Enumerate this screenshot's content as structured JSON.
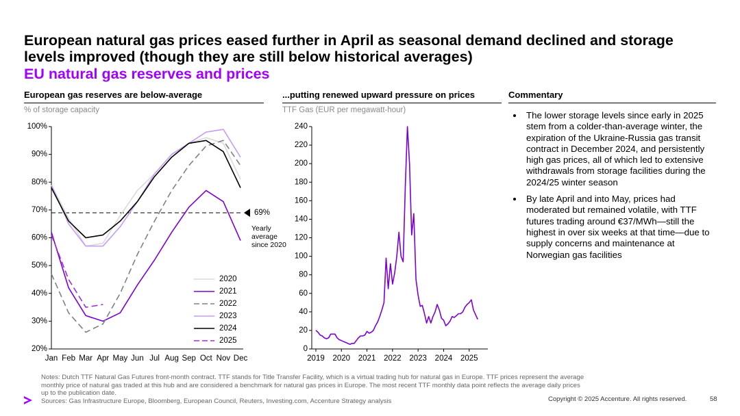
{
  "title": "European natural gas prices eased further in April as seasonal demand declined and storage levels improved (though they are still below historical averages)",
  "subtitle": "EU natural gas reserves and prices",
  "chart_data": [
    {
      "type": "line",
      "title": "European gas reserves are below-average",
      "y_label": "% of storage capacity",
      "categories": [
        "Jan",
        "Feb",
        "Mar",
        "Apr",
        "May",
        "Jun",
        "Jul",
        "Aug",
        "Sep",
        "Oct",
        "Nov",
        "Dec"
      ],
      "ylim": [
        20,
        100
      ],
      "yticks": [
        {
          "value": 20,
          "label": "20%"
        },
        {
          "value": 30,
          "label": "30%"
        },
        {
          "value": 40,
          "label": "40%"
        },
        {
          "value": 50,
          "label": "50%"
        },
        {
          "value": 60,
          "label": "60%"
        },
        {
          "value": 70,
          "label": "70%"
        },
        {
          "value": 80,
          "label": "80%"
        },
        {
          "value": 90,
          "label": "90%"
        },
        {
          "value": 100,
          "label": "100%"
        }
      ],
      "legend": "lower right",
      "series": [
        {
          "name": "2020",
          "color": "#d9d9d9",
          "style": "solid",
          "values": [
            79,
            67,
            57,
            58,
            68,
            77,
            83,
            90,
            94,
            96,
            94,
            81
          ]
        },
        {
          "name": "2021",
          "color": "#7b00d4",
          "style": "solid",
          "values": [
            62,
            42,
            32,
            30,
            33,
            43,
            52,
            62,
            71,
            77,
            73,
            59
          ]
        },
        {
          "name": "2022",
          "color": "#808080",
          "style": "dashed",
          "values": [
            47,
            33,
            26,
            29,
            40,
            54,
            66,
            77,
            86,
            93,
            95,
            86
          ]
        },
        {
          "name": "2023",
          "color": "#c89cf5",
          "style": "solid",
          "values": [
            79,
            65,
            57,
            57,
            64,
            73,
            83,
            90,
            94,
            98,
            99,
            89
          ]
        },
        {
          "name": "2024",
          "color": "#000000",
          "style": "solid",
          "values": [
            78,
            66,
            60,
            61,
            66,
            73,
            82,
            89,
            94,
            95,
            91,
            78
          ]
        },
        {
          "name": "2025",
          "color": "#9b30d9",
          "style": "dashed",
          "values": [
            61,
            45,
            35,
            36,
            null,
            null,
            null,
            null,
            null,
            null,
            null,
            null
          ]
        }
      ],
      "reference_line": {
        "value": 69,
        "label": "69%",
        "text": "Yearly average since 2020"
      }
    },
    {
      "type": "line",
      "title": "...putting renewed upward pressure on prices",
      "y_label": "TTF Gas (EUR per megawatt-hour)",
      "xlim": [
        2018.84,
        2025.73
      ],
      "xticks": [
        2019,
        2020,
        2021,
        2022,
        2023,
        2024,
        2025
      ],
      "ylim": [
        0,
        240
      ],
      "yticks": [
        0,
        20,
        40,
        60,
        80,
        100,
        120,
        140,
        160,
        180,
        200,
        220,
        240
      ],
      "series": [
        {
          "name": "TTF",
          "color": "#7b00d4",
          "x": [
            2019,
            2019.083,
            2019.167,
            2019.25,
            2019.333,
            2019.417,
            2019.5,
            2019.583,
            2019.667,
            2019.75,
            2019.833,
            2019.917,
            2020,
            2020.083,
            2020.167,
            2020.25,
            2020.333,
            2020.417,
            2020.5,
            2020.583,
            2020.667,
            2020.75,
            2020.833,
            2020.917,
            2021,
            2021.083,
            2021.167,
            2021.25,
            2021.333,
            2021.417,
            2021.5,
            2021.583,
            2021.667,
            2021.75,
            2021.833,
            2021.917,
            2022,
            2022.083,
            2022.167,
            2022.25,
            2022.333,
            2022.417,
            2022.5,
            2022.583,
            2022.667,
            2022.75,
            2022.833,
            2022.917,
            2023,
            2023.083,
            2023.167,
            2023.25,
            2023.333,
            2023.417,
            2023.5,
            2023.583,
            2023.667,
            2023.75,
            2023.833,
            2023.917,
            2024,
            2024.083,
            2024.167,
            2024.25,
            2024.333,
            2024.417,
            2024.5,
            2024.583,
            2024.667,
            2024.75,
            2024.833,
            2024.917,
            2025,
            2025.083,
            2025.167,
            2025.25,
            2025.333
          ],
          "values": [
            20,
            18,
            15,
            14,
            12,
            11,
            12,
            16,
            16,
            16,
            12,
            10,
            9,
            8,
            7,
            6,
            5,
            6,
            6,
            9,
            12,
            14,
            14,
            15,
            19,
            17,
            18,
            20,
            25,
            29,
            35,
            42,
            50,
            98,
            65,
            92,
            70,
            82,
            100,
            126,
            100,
            94,
            175,
            240,
            200,
            123,
            146,
            75,
            58,
            46,
            47,
            38,
            28,
            35,
            28,
            35,
            40,
            48,
            42,
            33,
            31,
            25,
            27,
            30,
            35,
            34,
            36,
            38,
            38,
            40,
            45,
            48,
            50,
            53,
            42,
            37,
            32
          ]
        }
      ]
    }
  ],
  "commentary": {
    "heading": "Commentary",
    "bullets": [
      "The lower storage levels since early in 2025 stem from a colder-than-average winter, the expiration of the Ukraine-Russia gas transit contract in December 2024, and persistently high gas prices, all of which led to extensive withdrawals from storage facilities during the 2024/25 winter season",
      "By late April and into May, prices had moderated but remained volatile, with TTF futures trading around €37/MWh—still the highest in over six weeks at that time—due to supply concerns and maintenance at Norwegian gas facilities"
    ]
  },
  "notes": "Notes: Dutch TTF Natural Gas Futures front-month contract. TTF stands for Title Transfer Facility, which is a virtual trading hub for natural gas in Europe.  TTF prices represent the average monthly price of natural gas traded at this hub and are considered a benchmark for natural gas prices in Europe. The most recent TTF monthly data point reflects the average daily prices up to the publication date.",
  "sources": "Sources: Gas Infrastructure Europe, Bloomberg, European Council, Reuters, Investing.com, Accenture Strategy analysis",
  "copyright": "Copyright © 2025 Accenture. All rights reserved.",
  "page_number": 58
}
